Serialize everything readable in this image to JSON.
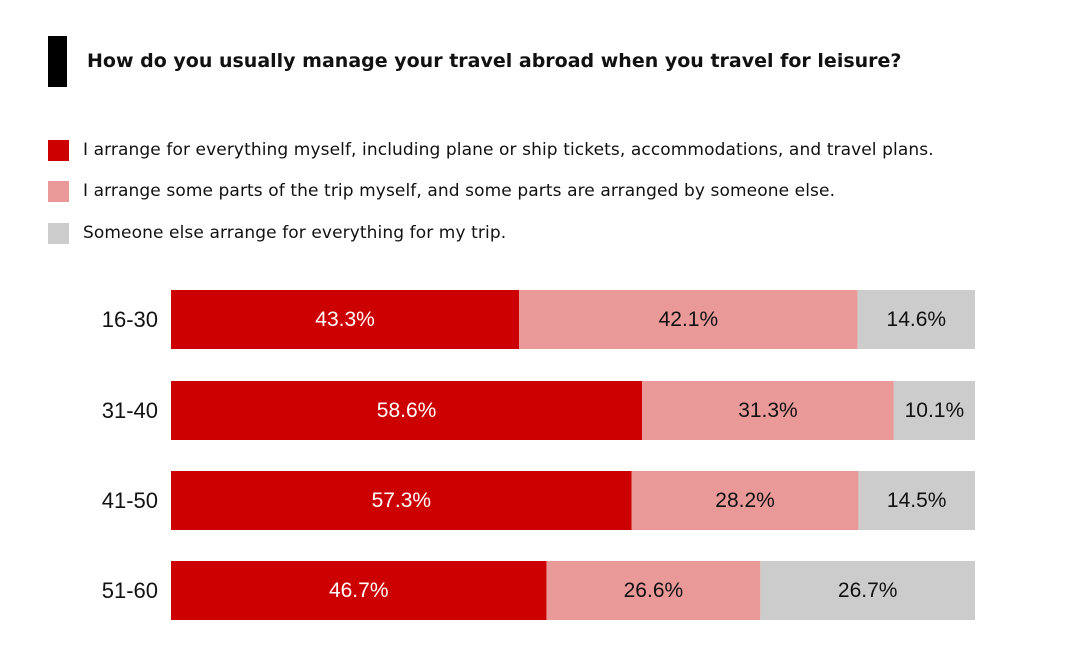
{
  "title": "How do you usually manage your travel abroad when you travel for leisure?",
  "legend": [
    {
      "label": "I arrange for everything myself, including plane or ship tickets, accommodations, and travel plans.",
      "color": "#cc0000"
    },
    {
      "label": "I arrange some parts of the trip myself, and some parts are arranged by someone else.",
      "color": "#ea9999"
    },
    {
      "label": "Someone else arrange for everything for my trip.",
      "color": "#cccccc"
    }
  ],
  "chart_data": {
    "type": "bar",
    "orientation": "horizontal",
    "stacked": "100%",
    "categories": [
      "16-30",
      "31-40",
      "41-50",
      "51-60"
    ],
    "series": [
      {
        "name": "I arrange for everything myself, including plane or ship tickets, accommodations, and travel plans.",
        "color": "#cc0000",
        "values": [
          43.3,
          58.6,
          57.3,
          46.7
        ],
        "labels": [
          "43.3%",
          "58.6%",
          "57.3%",
          "46.7%"
        ]
      },
      {
        "name": "I arrange some parts of the trip myself, and some parts are arranged by someone else.",
        "color": "#ea9999",
        "values": [
          42.1,
          31.3,
          28.2,
          26.6
        ],
        "labels": [
          "42.1%",
          "31.3%",
          "28.2%",
          "26.6%"
        ]
      },
      {
        "name": "Someone else arrange for everything for my trip.",
        "color": "#cccccc",
        "values": [
          14.6,
          10.1,
          14.5,
          26.7
        ],
        "labels": [
          "14.6%",
          "10.1%",
          "14.5%",
          "26.7%"
        ]
      }
    ],
    "label_colors": [
      "#ffffff",
      "#111111",
      "#111111"
    ],
    "legend_position": "top-left",
    "grid": false,
    "xlim": [
      0,
      100
    ]
  }
}
